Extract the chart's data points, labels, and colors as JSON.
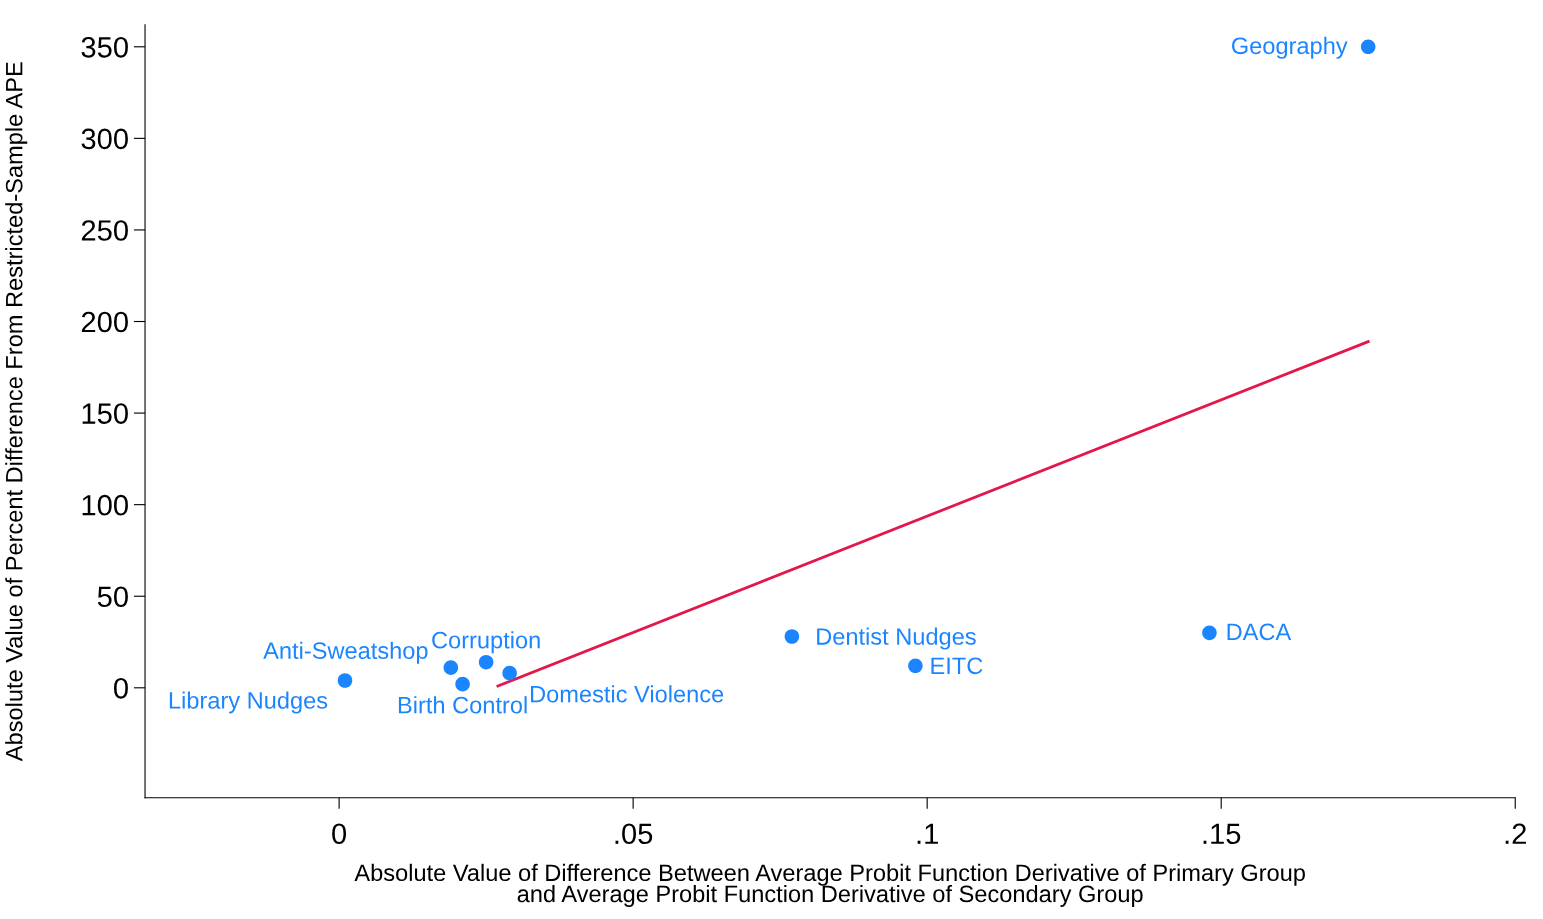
{
  "chart_data": {
    "type": "scatter",
    "xlabel": "Absolute Value of Difference Between Average Probit Function Derivative of Primary Group\nand Average Probit Function Derivative of Secondary Group",
    "ylabel": "Absolute Value of Percent Difference From Restricted-Sample APE",
    "series": [
      {
        "color": "#1a85ff",
        "marker": "circle",
        "x": [
          0.001,
          0.019,
          0.021,
          0.025,
          0.029,
          0.077,
          0.098,
          0.148,
          0.175
        ],
        "values": [
          4,
          11,
          2,
          14,
          8,
          28,
          12,
          30,
          350
        ]
      },
      {
        "type": "line",
        "color": "#e3174a",
        "x": [
          0.027,
          0.175
        ],
        "values": [
          1,
          189
        ]
      }
    ],
    "annotations": [
      {
        "text": "Library Nudges",
        "x": 0.001,
        "y": 4
      },
      {
        "text": "Anti-Sweatshop",
        "x": 0.019,
        "y": 11
      },
      {
        "text": "Birth Control",
        "x": 0.021,
        "y": 2
      },
      {
        "text": "Corruption",
        "x": 0.025,
        "y": 14
      },
      {
        "text": "Domestic Violence",
        "x": 0.029,
        "y": 8
      },
      {
        "text": "Dentist Nudges",
        "x": 0.077,
        "y": 28
      },
      {
        "text": "EITC",
        "x": 0.098,
        "y": 12
      },
      {
        "text": "DACA",
        "x": 0.148,
        "y": 30
      },
      {
        "text": "Geography",
        "x": 0.175,
        "y": 350
      }
    ],
    "xlim": [
      -0.033,
      0.2
    ],
    "ylim": [
      -60,
      362
    ],
    "xticks": [
      0,
      {
        "value": 0.05,
        "label": ".05"
      },
      {
        "value": 0.1,
        "label": ".1"
      },
      {
        "value": 0.15,
        "label": ".15"
      },
      {
        "value": 0.2,
        "label": ".2"
      }
    ],
    "yticks": [
      0,
      50,
      100,
      150,
      200,
      250,
      300,
      350
    ],
    "grid": false,
    "legend": false
  }
}
